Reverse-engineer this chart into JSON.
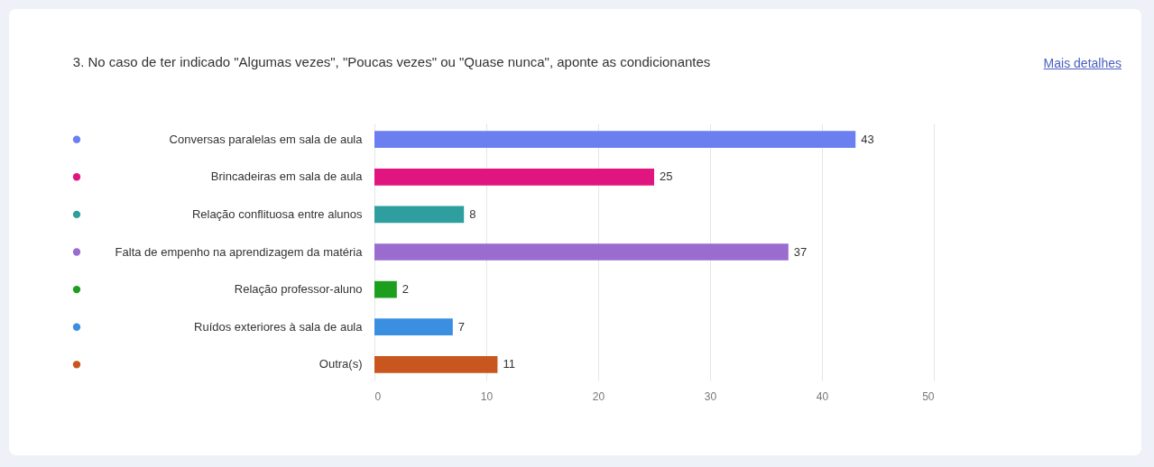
{
  "chart_data": {
    "type": "bar",
    "orientation": "horizontal",
    "title": "3. No caso de ter indicado \"Algumas vezes\", \"Poucas vezes\" ou \"Quase nunca\", aponte as condicionantes",
    "annotations": [
      "Mais detalhes"
    ],
    "categories": [
      "Conversas paralelas em sala de aula",
      "Brincadeiras em sala de aula",
      "Relação conflituosa entre alunos",
      "Falta de empenho na aprendizagem da matéria",
      "Relação professor-aluno",
      "Ruídos exteriores à sala de aula",
      "Outra(s)"
    ],
    "values": [
      43,
      25,
      8,
      37,
      2,
      7,
      11
    ],
    "colors": [
      "#6b7ff0",
      "#e0157f",
      "#2e9e9e",
      "#9a6ccf",
      "#1e9e1e",
      "#3a8fe0",
      "#c8561e"
    ],
    "xlim": [
      0,
      50
    ],
    "xticks": [
      0,
      10,
      20,
      30,
      40,
      50
    ],
    "grid": "x",
    "data_labels": true
  }
}
